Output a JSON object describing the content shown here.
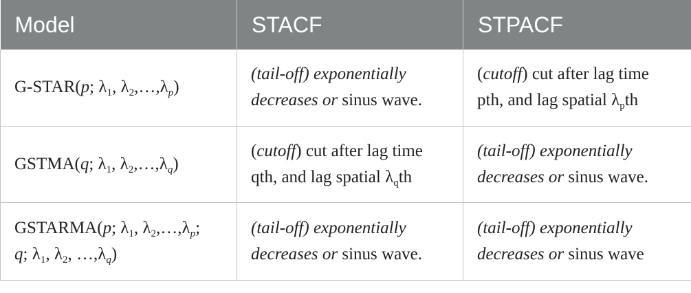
{
  "headers": [
    "Model",
    "STACF",
    "STPACF"
  ],
  "rows": [
    {
      "model": {
        "pre": "G-STAR(",
        "p": "p",
        "sep": "; ",
        "l1": "λ",
        "s1": "1",
        "l2": "λ",
        "s2": "2",
        "dots": ",…,",
        "lp": "λ",
        "sp": "p",
        "post": ")"
      },
      "stacf": {
        "l1_a": "(tail-off) exponentially",
        "l2_a": "decreases or",
        "l2_b": " sinus wave."
      },
      "stpacf": {
        "l1_a": "(",
        "l1_b": "cutoff",
        "l1_c": ") cut after lag time",
        "l2_a": "pth, and lag spatial ",
        "l2_lam": "λ",
        "l2_sub": "p",
        "l2_b": "th"
      }
    },
    {
      "model": {
        "pre": "GSTMA(",
        "q": "q",
        "sep": "; ",
        "l1": "λ",
        "s1": "1",
        "l2": "λ",
        "s2": "2",
        "dots": ",…,",
        "lq": "λ",
        "sq": "q",
        "post": ")"
      },
      "stacf": {
        "l1_a": "(",
        "l1_b": "cutoff",
        "l1_c": ") cut after lag time",
        "l2_a": "qth, and lag spatial ",
        "l2_lam": "λ",
        "l2_sub": "q",
        "l2_b": "th"
      },
      "stpacf": {
        "l1_a": "(tail-off) exponentially",
        "l2_a": "decreases or",
        "l2_b": " sinus wave."
      }
    },
    {
      "model": {
        "pre": "GSTARMA(",
        "p": "p",
        "sep": "; ",
        "l1": "λ",
        "s1": "1",
        "l2": "λ",
        "s2": "2",
        "dots": ",…,",
        "lp": "λ",
        "sp": "p",
        "post1": ";",
        "q": "q",
        "sep2": "; ",
        "m1": "λ",
        "t1": "1",
        "m2": "λ",
        "t2": "2",
        "dots2": ", …,",
        "lq": "λ",
        "sq": "q",
        "post": ")"
      },
      "stacf": {
        "l1_a": "(tail-off) exponentially",
        "l2_a": "decreases or",
        "l2_b": " sinus wave."
      },
      "stpacf": {
        "l1_a": "(tail-off) exponentially",
        "l2_a": "decreases or",
        "l2_b": " sinus wave"
      }
    }
  ]
}
